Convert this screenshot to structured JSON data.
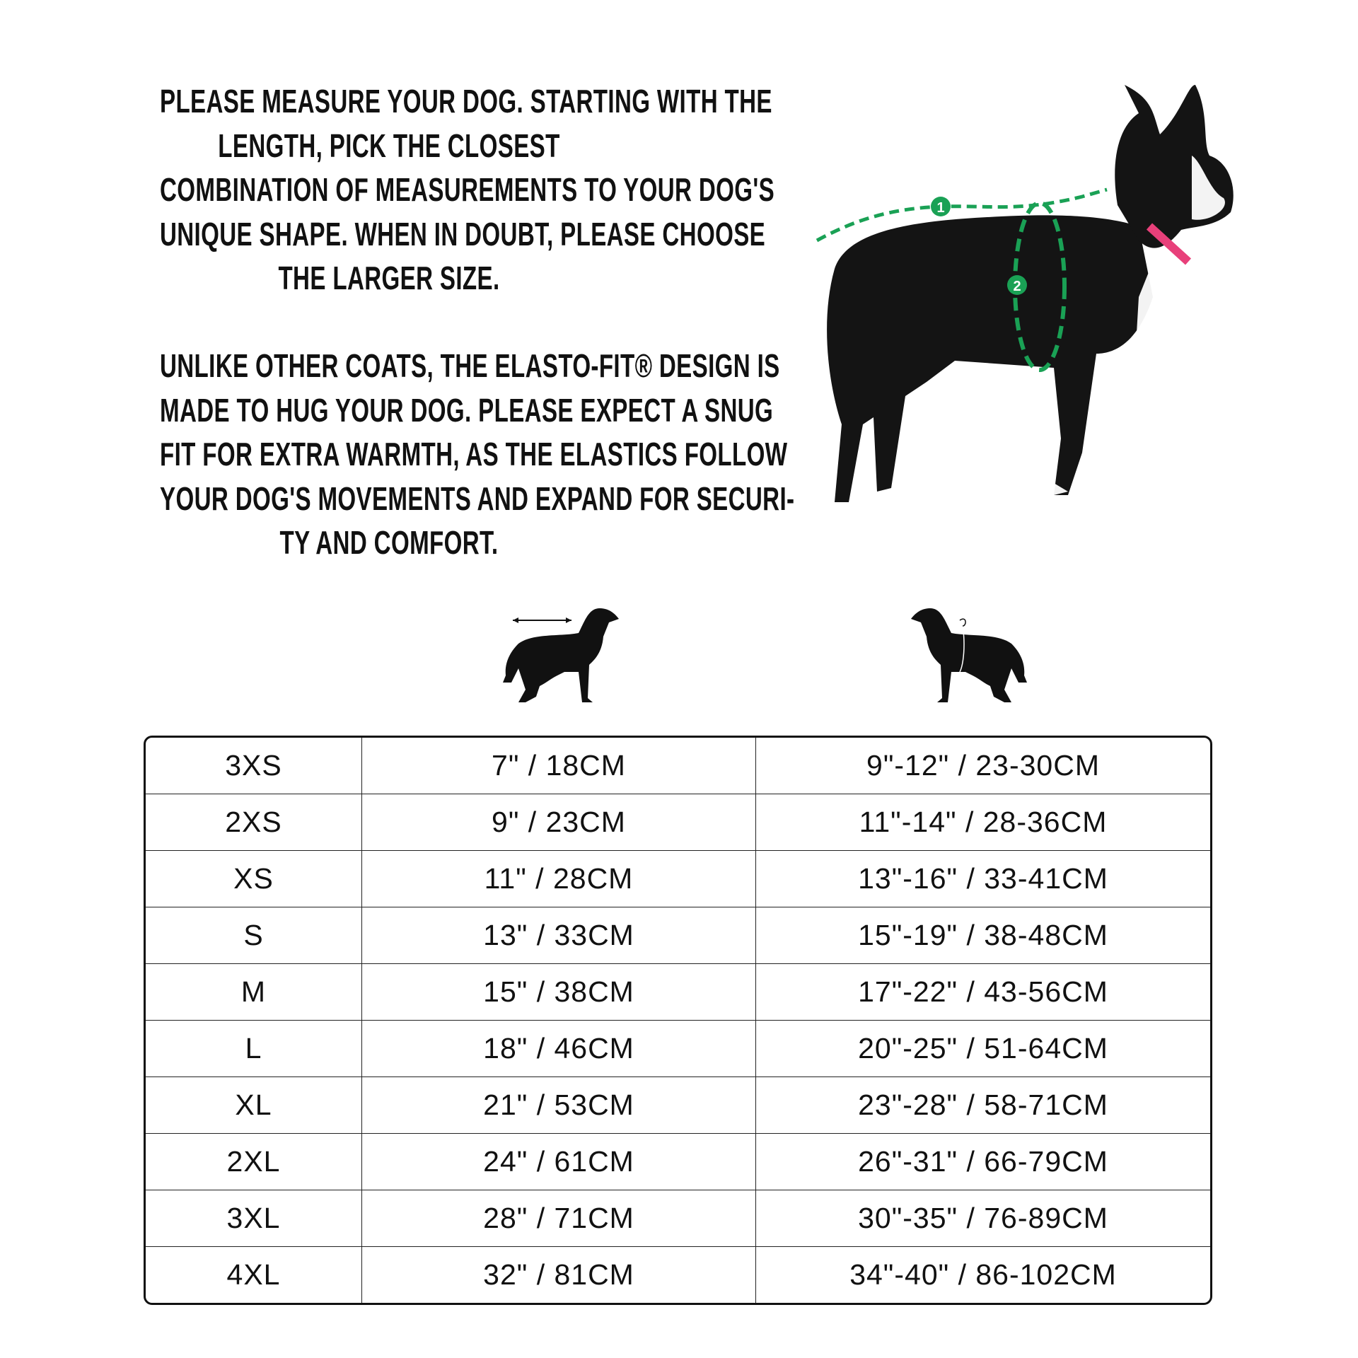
{
  "intro": {
    "paragraph1": [
      "PLEASE MEASURE YOUR DOG. STARTING WITH THE",
      "LENGTH, PICK THE CLOSEST",
      "COMBINATION OF MEASUREMENTS TO YOUR DOG'S",
      "UNIQUE SHAPE. WHEN IN DOUBT, PLEASE CHOOSE",
      "THE LARGER SIZE."
    ],
    "paragraph2": [
      "UNLIKE OTHER COATS, THE ELASTO-FIT® DESIGN IS",
      "MADE TO HUG YOUR DOG. PLEASE EXPECT A SNUG",
      "FIT FOR EXTRA WARMTH, AS THE ELASTICS FOLLOW",
      "YOUR DOG'S MOVEMENTS AND EXPAND FOR SECURI-",
      "TY AND COMFORT."
    ]
  },
  "photo": {
    "markers": [
      "1",
      "2"
    ],
    "marker_color": "#1aa155",
    "collar_color": "#e8407a"
  },
  "column_icons": [
    "dog-length-icon",
    "dog-chest-icon"
  ],
  "size_table": {
    "rows": [
      [
        "3XS",
        "7\" / 18CM",
        "9\"-12\" / 23-30CM"
      ],
      [
        "2XS",
        "9\" / 23CM",
        "11\"-14\" / 28-36CM"
      ],
      [
        "XS",
        "11\" / 28CM",
        "13\"-16\" / 33-41CM"
      ],
      [
        "S",
        "13\" / 33CM",
        "15\"-19\" / 38-48CM"
      ],
      [
        "M",
        "15\" / 38CM",
        "17\"-22\" / 43-56CM"
      ],
      [
        "L",
        "18\" / 46CM",
        "20\"-25\" / 51-64CM"
      ],
      [
        "XL",
        "21\" / 53CM",
        "23\"-28\" / 58-71CM"
      ],
      [
        "2XL",
        "24\" / 61CM",
        "26\"-31\" / 66-79CM"
      ],
      [
        "3XL",
        "28\" / 71CM",
        "30\"-35\" / 76-89CM"
      ],
      [
        "4XL",
        "32\" / 81CM",
        "34\"-40\" / 86-102CM"
      ]
    ]
  }
}
